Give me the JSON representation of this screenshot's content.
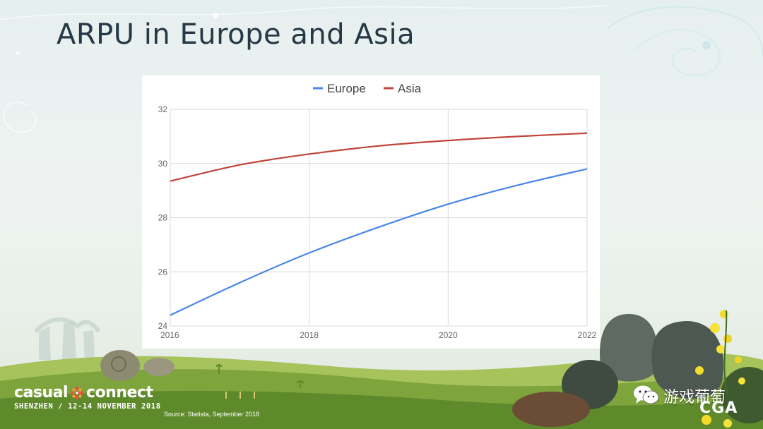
{
  "slide": {
    "title": "ARPU in Europe and Asia",
    "source": "Source: Statista, September 2018"
  },
  "logo": {
    "brand_left": "casual",
    "brand_right": "connect",
    "subtitle": "SHENZHEN / 12-14 NOVEMBER 2018"
  },
  "watermark": {
    "text": "游戏葡萄",
    "cga": "CGA",
    "icon": "wechat-icon"
  },
  "colors": {
    "europe": "#4a86e8",
    "asia": "#c0453a",
    "grid": "#d9d9d9",
    "axis_text": "#666666",
    "title": "#243846"
  },
  "chart_data": {
    "type": "line",
    "title": "",
    "xlabel": "",
    "ylabel": "",
    "x": [
      2016,
      2017,
      2018,
      2019,
      2020,
      2021,
      2022
    ],
    "xticks": [
      "2016",
      "2018",
      "2020",
      "2022"
    ],
    "yticks": [
      "24",
      "26",
      "28",
      "30",
      "32"
    ],
    "xlim": [
      2016,
      2022
    ],
    "ylim": [
      24,
      32
    ],
    "grid": true,
    "legend_position": "top-center",
    "series": [
      {
        "name": "Europe",
        "color": "#4a86e8",
        "values": [
          24.4,
          25.6,
          26.7,
          27.65,
          28.5,
          29.2,
          29.8
        ]
      },
      {
        "name": "Asia",
        "color": "#c0453a",
        "values": [
          29.35,
          29.95,
          30.35,
          30.65,
          30.85,
          31.0,
          31.12
        ]
      }
    ]
  }
}
